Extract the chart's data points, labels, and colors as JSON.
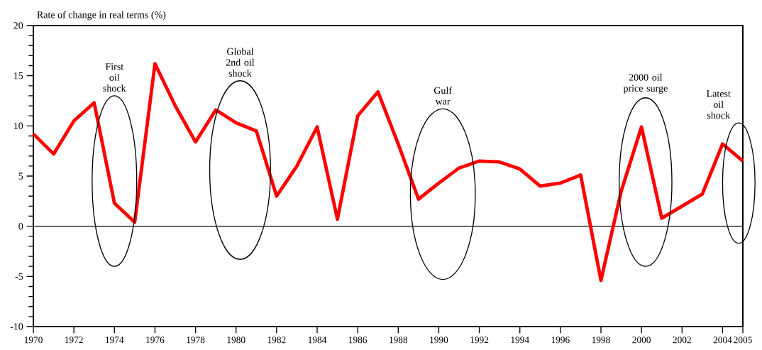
{
  "chart_data": {
    "type": "line",
    "ylabel": "Rate of change in real terms (%)",
    "x": [
      1970,
      1971,
      1972,
      1973,
      1974,
      1975,
      1976,
      1977,
      1978,
      1979,
      1980,
      1981,
      1982,
      1983,
      1984,
      1985,
      1986,
      1987,
      1988,
      1989,
      1990,
      1991,
      1992,
      1993,
      1994,
      1995,
      1996,
      1997,
      1998,
      1999,
      2000,
      2001,
      2002,
      2003,
      2004,
      2005
    ],
    "values": [
      9.2,
      7.2,
      10.5,
      12.3,
      2.3,
      0.4,
      16.2,
      12,
      8.4,
      11.6,
      10.3,
      9.5,
      3,
      6,
      9.9,
      0.7,
      11,
      13.4,
      8.2,
      2.7,
      4.3,
      5.8,
      6.5,
      6.4,
      5.7,
      4,
      4.3,
      5.1,
      -5.4,
      3.5,
      9.9,
      0.8,
      2,
      3.2,
      8.2,
      6.5
    ],
    "color": "#ff0000",
    "marker": "none",
    "line_style": "solid",
    "grid": false,
    "xlim": [
      1970,
      2005
    ],
    "ylim": [
      -10,
      20
    ],
    "xticks": [
      1970,
      1972,
      1974,
      1976,
      1978,
      1980,
      1982,
      1984,
      1986,
      1988,
      1990,
      1992,
      1994,
      1996,
      1998,
      2000,
      2002,
      2004,
      2005
    ],
    "yticks": [
      -10,
      -5,
      0,
      5,
      10,
      15,
      20
    ],
    "ref_lines": [
      {
        "axis": "y",
        "value": 0,
        "color": "#000000"
      }
    ],
    "annotations": [
      "First oil shock",
      "Global 2nd oil shock",
      "Gulf war",
      "2000 oil price surge",
      "Latest oil shock"
    ]
  }
}
